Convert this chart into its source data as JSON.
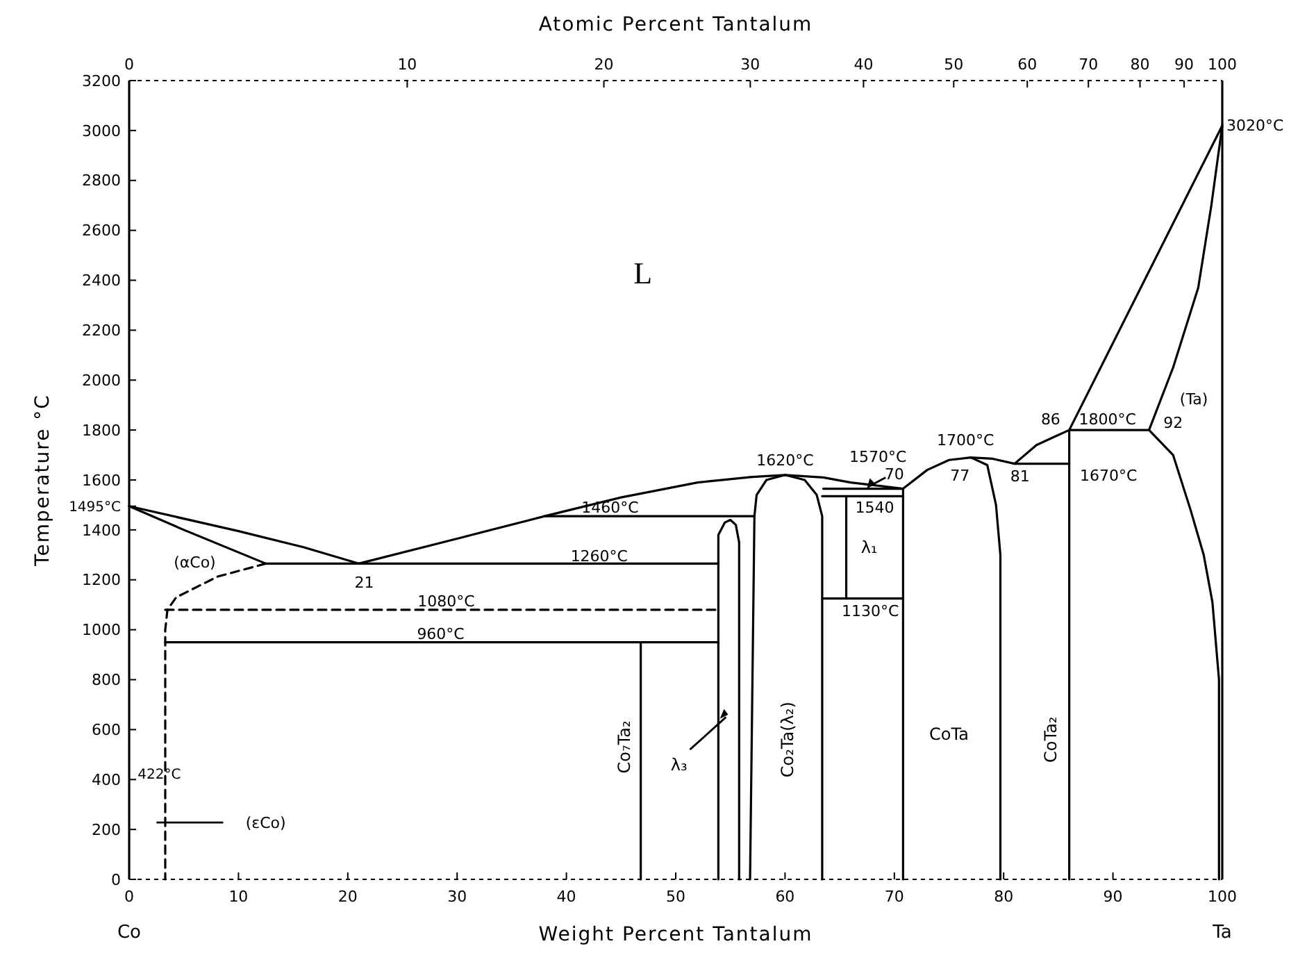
{
  "chart_data": {
    "type": "line",
    "xlabel": "Weight Percent Tantalum",
    "x2label": "Atomic Percent Tantalum",
    "ylabel": "Temperature °C",
    "xlim": [
      0,
      100
    ],
    "ylim": [
      0,
      3200
    ],
    "xticks": [
      0,
      10,
      20,
      30,
      40,
      50,
      60,
      70,
      80,
      90,
      100
    ],
    "yticks": [
      0,
      200,
      400,
      600,
      800,
      1000,
      1200,
      1400,
      1600,
      1800,
      2000,
      2200,
      2400,
      2600,
      2800,
      3000,
      3200,
      {
        "value": 1495,
        "label": "1495°C"
      }
    ],
    "series": [
      {
        "color": "#000000",
        "x": [
          0,
          10,
          16,
          21,
          30,
          38,
          45,
          52,
          57,
          60,
          63.5,
          66,
          70.8,
          73,
          75,
          77,
          79,
          81,
          83,
          86,
          100
        ],
        "values": [
          1495,
          1395,
          1330,
          1265,
          1365,
          1455,
          1530,
          1590,
          1612,
          1620,
          1610,
          1590,
          1565,
          1640,
          1680,
          1690,
          1685,
          1665,
          1740,
          1800,
          3020
        ]
      },
      {
        "color": "#000000",
        "x": [
          0,
          5,
          12.5,
          53.9
        ],
        "values": [
          1495,
          1400,
          1265,
          1265
        ]
      },
      {
        "color": "#000000",
        "x": [
          93.3,
          95.5,
          97.8,
          99,
          100
        ],
        "values": [
          1800,
          2050,
          2370,
          2700,
          3020
        ]
      },
      {
        "color": "#000000",
        "x": [
          99.7,
          99.7,
          99.1,
          98.3,
          97.1,
          95.5,
          93.3,
          86,
          86
        ],
        "values": [
          0,
          800,
          1110,
          1300,
          1480,
          1700,
          1800,
          1800,
          0
        ]
      },
      {
        "color": "#000000",
        "x": [
          81,
          86
        ],
        "values": [
          1665,
          1665
        ]
      },
      {
        "color": "#000000",
        "x": [
          77,
          78.5,
          79.3,
          79.7,
          79.7
        ],
        "values": [
          1690,
          1660,
          1500,
          1300,
          0
        ]
      },
      {
        "color": "#000000",
        "x": [
          70.8,
          70.8
        ],
        "values": [
          0,
          1565
        ]
      },
      {
        "color": "#000000",
        "x": [
          63.5,
          70.8
        ],
        "values": [
          1565,
          1565
        ]
      },
      {
        "color": "#000000",
        "x": [
          63.4,
          70.8
        ],
        "values": [
          1535,
          1535
        ]
      },
      {
        "color": "#000000",
        "x": [
          63.4,
          70.8
        ],
        "values": [
          1125,
          1125
        ]
      },
      {
        "color": "#000000",
        "x": [
          65.6,
          65.6
        ],
        "values": [
          1125,
          1535
        ]
      },
      {
        "color": "#000000",
        "x": [
          56.8,
          57.2,
          57.4,
          58.3,
          60,
          61.8,
          62.9,
          63.4,
          63.4
        ],
        "values": [
          0,
          1455,
          1540,
          1600,
          1620,
          1600,
          1540,
          1455,
          0
        ]
      },
      {
        "color": "#000000",
        "x": [
          38,
          57.2
        ],
        "values": [
          1455,
          1455
        ]
      },
      {
        "color": "#000000",
        "x": [
          53.9,
          53.9,
          54.5,
          55,
          55.5,
          55.8,
          55.8
        ],
        "values": [
          0,
          1380,
          1430,
          1440,
          1420,
          1350,
          0
        ]
      },
      {
        "color": "#000000",
        "x": [
          46.8,
          46.8
        ],
        "values": [
          0,
          950
        ]
      },
      {
        "color": "#000000",
        "x": [
          3.3,
          53.9
        ],
        "values": [
          950,
          950
        ]
      },
      {
        "color": "#000000",
        "line_style": "dashed",
        "x": [
          3.3,
          53.9
        ],
        "values": [
          1080,
          1080
        ]
      },
      {
        "color": "#000000",
        "line_style": "dashed",
        "x": [
          12.5,
          8.1,
          4.3,
          3.5,
          3.3,
          3.3
        ],
        "values": [
          1265,
          1213,
          1130,
          1080,
          1000,
          0
        ]
      }
    ],
    "annotations": [
      "Co",
      "Ta",
      "L",
      "(αCo)",
      "(εCo)",
      "21",
      "1260°C",
      "1080°C",
      "960°C",
      "1460°C",
      "Co₇Ta₂",
      "λ₃",
      "Co₂Ta(λ₂)",
      "1620°C",
      "1570°C",
      "70",
      "1540",
      "λ₁",
      "1130°C",
      "CoTa",
      "1700°C",
      "77",
      "81",
      "CoTa₂",
      "86",
      "1800°C",
      "92",
      "1670°C",
      "(Ta)",
      "3020°C",
      "422°C",
      "0",
      "10",
      "20",
      "30",
      "40",
      "50",
      "60",
      "70",
      "80",
      "90",
      "100"
    ]
  }
}
